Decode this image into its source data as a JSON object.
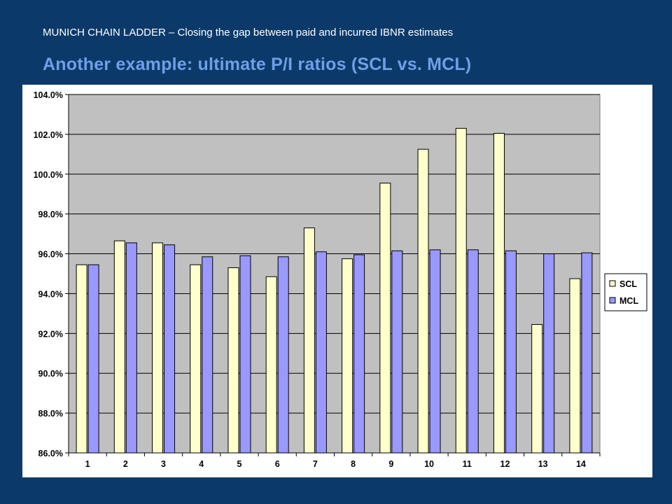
{
  "slide": {
    "subtitle": "MUNICH CHAIN LADDER – Closing the gap between paid and incurred IBNR estimates",
    "title": "Another example: ultimate P/I ratios (SCL vs. MCL)"
  },
  "colors": {
    "background": "#0b3a6a",
    "title": "#6f9fe6",
    "plot_area": "#c0c0c0",
    "scl": "#ffffcc",
    "mcl": "#9999ff"
  },
  "chart_data": {
    "type": "bar",
    "title": "",
    "xlabel": "",
    "ylabel": "",
    "categories": [
      "1",
      "2",
      "3",
      "4",
      "5",
      "6",
      "7",
      "8",
      "9",
      "10",
      "11",
      "12",
      "13",
      "14"
    ],
    "series": [
      {
        "name": "SCL",
        "values": [
          95.45,
          96.65,
          96.55,
          95.45,
          95.3,
          94.85,
          97.3,
          95.75,
          99.55,
          101.25,
          102.3,
          102.05,
          92.45,
          94.75
        ]
      },
      {
        "name": "MCL",
        "values": [
          95.45,
          96.55,
          96.45,
          95.85,
          95.9,
          95.85,
          96.1,
          95.95,
          96.15,
          96.2,
          96.2,
          96.15,
          96.0,
          96.05
        ]
      }
    ],
    "ylim": [
      86.0,
      104.0
    ],
    "yticks": [
      "86.0%",
      "88.0%",
      "90.0%",
      "92.0%",
      "94.0%",
      "96.0%",
      "98.0%",
      "100.0%",
      "102.0%",
      "104.0%"
    ],
    "ytick_values": [
      86,
      88,
      90,
      92,
      94,
      96,
      98,
      100,
      102,
      104
    ],
    "grid": true,
    "legend": "right"
  }
}
